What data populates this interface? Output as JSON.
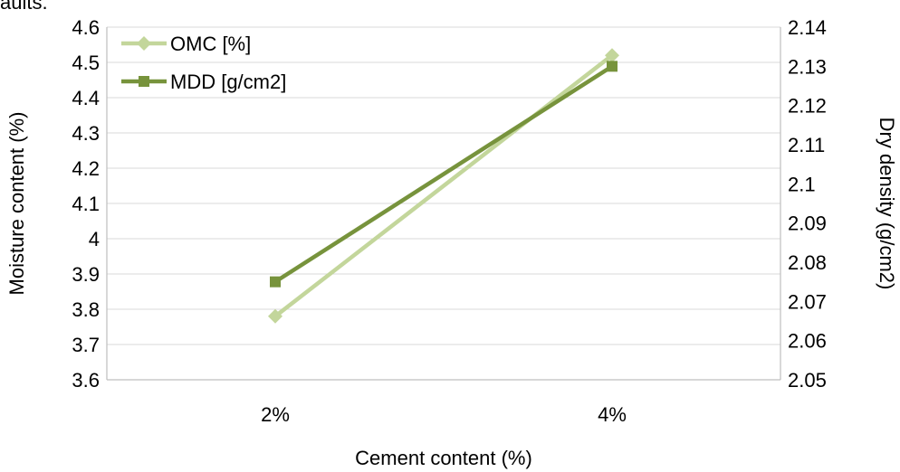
{
  "top_text": "aults.",
  "chart_data": {
    "type": "line",
    "categories": [
      "2%",
      "4%"
    ],
    "xlabel": "Cement content (%)",
    "ylabel": "Moisture content (%)",
    "y2label": "Dry density (g/cm2)",
    "ylim": [
      3.6,
      4.6
    ],
    "y2lim": [
      2.05,
      2.14
    ],
    "yticks": [
      "3.6",
      "3.7",
      "3.8",
      "3.9",
      "4",
      "4.1",
      "4.2",
      "4.3",
      "4.4",
      "4.5",
      "4.6"
    ],
    "y2ticks": [
      "2.05",
      "2.06",
      "2.07",
      "2.08",
      "2.09",
      "2.1",
      "2.11",
      "2.12",
      "2.13",
      "2.14"
    ],
    "grid": true,
    "legend_position": "top-left",
    "series": [
      {
        "name": "OMC [%]",
        "axis": "left",
        "values": [
          3.78,
          4.52
        ],
        "color": "#c3d69b",
        "marker": "diamond"
      },
      {
        "name": "MDD [g/cm2]",
        "axis": "right",
        "values": [
          2.075,
          2.13
        ],
        "color": "#77933c",
        "marker": "square"
      }
    ]
  }
}
